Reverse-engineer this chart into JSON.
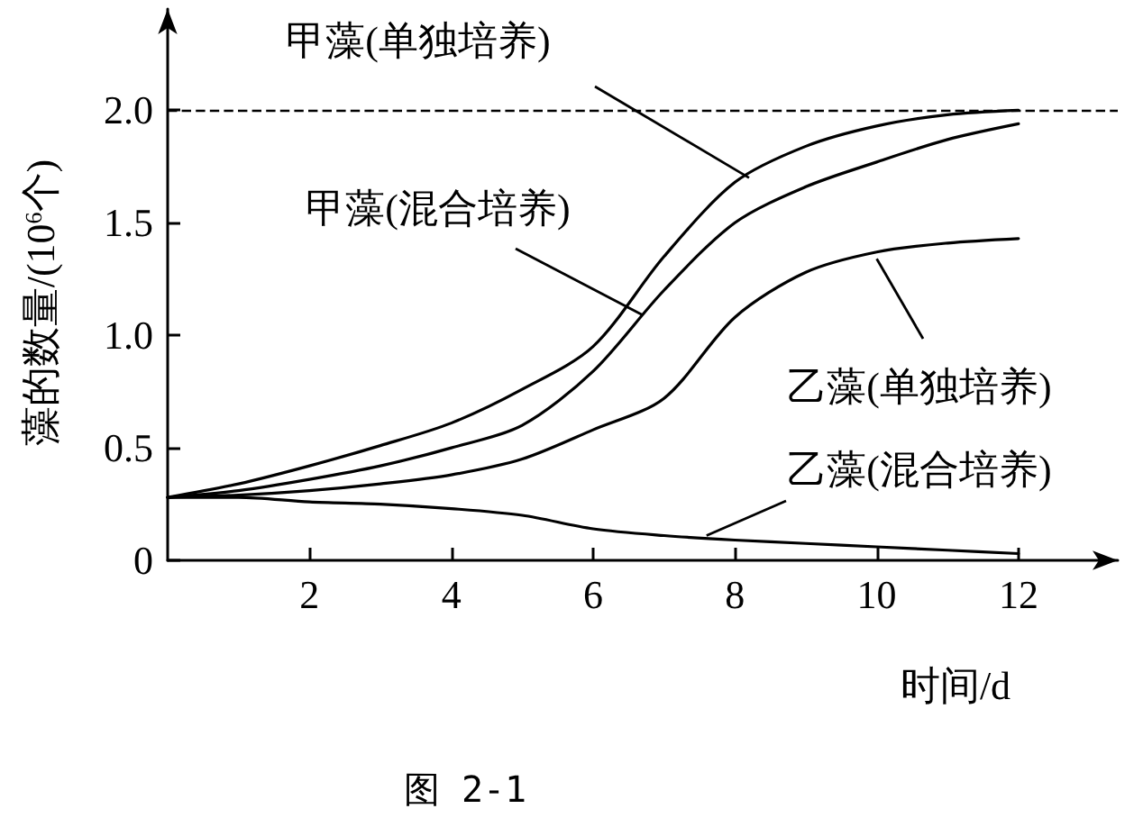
{
  "chart_data": {
    "type": "line",
    "xlabel": "时间/d",
    "ylabel": "藻的数量/(10$^{6}$个)",
    "x": [
      0,
      1,
      2,
      3,
      4,
      5,
      6,
      7,
      8,
      9,
      10,
      11,
      12
    ],
    "xlim": [
      0,
      13.4
    ],
    "xticks": [
      2,
      4,
      6,
      8,
      10,
      12
    ],
    "ylim": [
      0,
      2.45
    ],
    "yticks": [
      0,
      {
        "value": 0.5,
        "label": "0.5"
      },
      {
        "value": 1,
        "label": "1.0"
      },
      {
        "value": 1.5,
        "label": "1.5"
      },
      {
        "value": 2,
        "label": "2.0"
      }
    ],
    "series": [
      {
        "color": "#000000",
        "values": [
          0.28,
          0.34,
          0.42,
          0.51,
          0.61,
          0.76,
          0.95,
          1.35,
          1.68,
          1.84,
          1.93,
          1.98,
          2.0
        ]
      },
      {
        "color": "#000000",
        "values": [
          0.28,
          0.31,
          0.36,
          0.42,
          0.5,
          0.6,
          0.84,
          1.2,
          1.5,
          1.66,
          1.77,
          1.87,
          1.94
        ]
      },
      {
        "color": "#000000",
        "values": [
          0.28,
          0.29,
          0.31,
          0.34,
          0.38,
          0.45,
          0.58,
          0.72,
          1.08,
          1.28,
          1.37,
          1.41,
          1.43
        ]
      },
      {
        "color": "#000000",
        "values": [
          0.28,
          0.28,
          0.26,
          0.25,
          0.23,
          0.2,
          0.14,
          0.11,
          0.09,
          0.075,
          0.06,
          0.045,
          0.03
        ]
      }
    ],
    "ref_lines": [
      {
        "axis": "y",
        "value": 2.0,
        "line_style": "dashed",
        "color": "#000000"
      }
    ],
    "annotations": [
      {
        "text": "甲藻(单独培养)",
        "x": 8.2,
        "y": 1.7
      },
      {
        "text": "甲藻(混合培养)",
        "x": 6.7,
        "y": 1.09
      },
      {
        "text": "乙藻(单独培养)",
        "x": 10,
        "y": 1.34
      },
      {
        "text": "乙藻(混合培养)",
        "x": 7.6,
        "y": 0.11
      },
      "图 2-1"
    ]
  }
}
